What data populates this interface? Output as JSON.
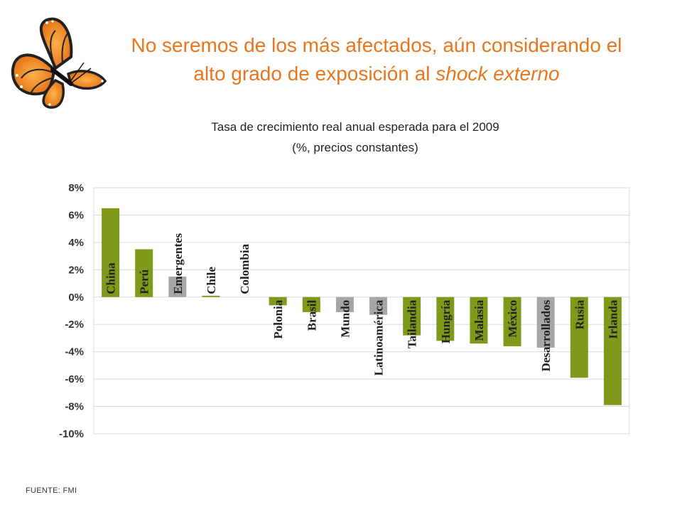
{
  "slide": {
    "title_line1": "No seremos de los más afectados, aún considerando el",
    "title_line2_pre": "alto grado de exposición al ",
    "title_line2_em": "shock externo",
    "source": "FUENTE: FMI"
  },
  "colors": {
    "accent": "#e8761e",
    "green": "#7f9a1a",
    "gray": "#a6a6a6"
  },
  "chart_data": {
    "type": "bar",
    "title_line1": "Tasa de crecimiento real anual esperada para el 2009",
    "title_line2": "(%, precios constantes)",
    "categories": [
      "China",
      "Perú",
      "Emergentes",
      "Chile",
      "Colombia",
      "Polonia",
      "Brasil",
      "Mundo",
      "Latinoamérica",
      "Tailandia",
      "Hungría",
      "Malasia",
      "México",
      "Desarrollados",
      "Rusia",
      "Irlanda"
    ],
    "values": [
      6.5,
      3.5,
      1.5,
      0.1,
      0.0,
      -0.6,
      -1.1,
      -1.1,
      -1.3,
      -2.8,
      -3.2,
      -3.4,
      -3.6,
      -3.7,
      -5.9,
      -7.9
    ],
    "bar_colors": [
      "green",
      "green",
      "gray",
      "green",
      "green",
      "green",
      "green",
      "gray",
      "gray",
      "green",
      "green",
      "green",
      "green",
      "gray",
      "green",
      "green"
    ],
    "ylim": [
      -10,
      8
    ],
    "ytick_labels": [
      "8%",
      "6%",
      "4%",
      "2%",
      "0%",
      "-2%",
      "-4%",
      "-6%",
      "-8%",
      "-10%"
    ],
    "grid": true,
    "legend": "none"
  }
}
